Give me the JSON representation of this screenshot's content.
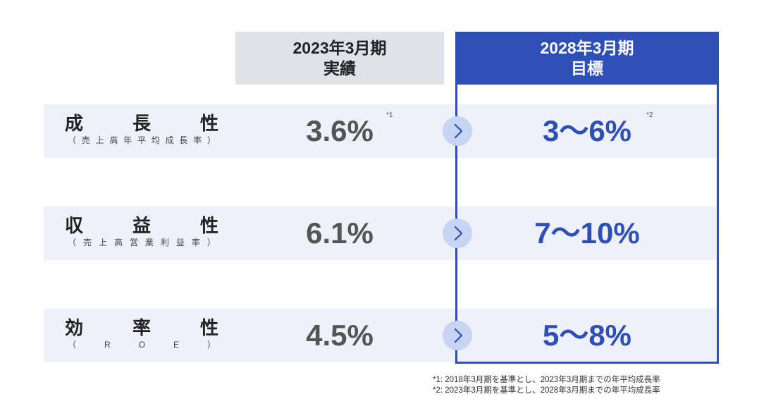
{
  "header": {
    "actual_line1": "2023年3月期",
    "actual_line2": "実績",
    "target_line1": "2028年3月期",
    "target_line2": "目標"
  },
  "rows": [
    {
      "label_chars": [
        "成",
        "長",
        "性"
      ],
      "sub_chars": [
        "（",
        "売",
        "上",
        "高",
        "年",
        "平",
        "均",
        "成",
        "長",
        "率",
        "）"
      ],
      "actual": "3.6%",
      "actual_note": "*1",
      "target": "3〜6%",
      "target_note": "*2"
    },
    {
      "label_chars": [
        "収",
        "益",
        "性"
      ],
      "sub_chars": [
        "（",
        "売",
        "上",
        "高",
        "営",
        "業",
        "利",
        "益",
        "率",
        "）"
      ],
      "actual": "6.1%",
      "target": "7〜10%"
    },
    {
      "label_chars": [
        "効",
        "率",
        "性"
      ],
      "sub_chars": [
        "（",
        "R",
        "O",
        "E",
        "）"
      ],
      "actual": "4.5%",
      "target": "5〜8%"
    }
  ],
  "footnotes": [
    "*1: 2018年3月期を基準とし、2023年3月期までの年平均成長率",
    "*2: 2023年3月期を基準とし、2028年3月期までの年平均成長率"
  ],
  "colors": {
    "accent": "#2e4fb6",
    "row_bg": "#eef0fa",
    "header_actual_bg": "#dfe2e8",
    "arrow_bg": "#c8d4f3"
  },
  "icons": {
    "arrow": "chevron-right-icon"
  }
}
